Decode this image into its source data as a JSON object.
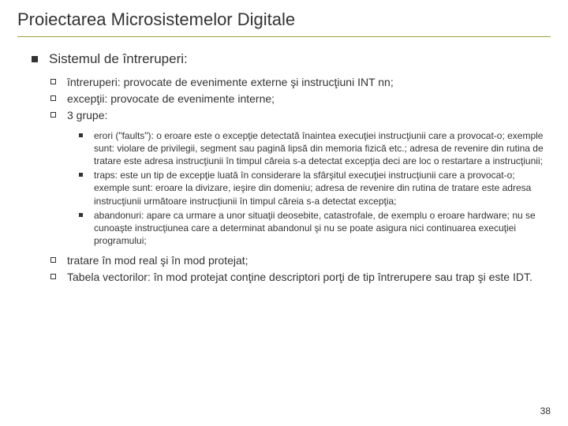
{
  "title": "Proiectarea Microsistemelor Digitale",
  "page_number": "38",
  "colors": {
    "text": "#333333",
    "rule": "#a0a040",
    "background": "#ffffff"
  },
  "fontsizes": {
    "title": 22,
    "level1": 17,
    "level2": 14,
    "level3": 12,
    "page_number": 12
  },
  "level1": [
    {
      "text": "Sistemul de întreruperi:"
    }
  ],
  "level2_a": [
    {
      "text": "întreruperi: provocate de evenimente externe şi instrucţiuni INT nn;"
    },
    {
      "text": "excepţii: provocate de evenimente interne;"
    },
    {
      "text": "3 grupe:"
    }
  ],
  "level3": [
    {
      "text": "erori (\"faults\"): o eroare este o excepţie detectată înaintea execuţiei instrucţiunii care a provocat-o; exemple sunt: violare de privilegii, segment sau pagină lipsă din memoria fizică etc.; adresa de revenire din rutina de tratare este adresa instrucţiunii în timpul căreia s-a detectat excepţia deci are loc o restartare a instrucţiunii;"
    },
    {
      "text": "traps: este un tip de excepţie luată în considerare la sfârşitul execuţiei instrucţiunii care a provocat-o; exemple sunt: eroare la divizare, ieşire din domeniu; adresa de revenire din rutina de tratare este adresa instrucţiunii următoare instrucţiunii în timpul căreia s-a detectat excepţia;"
    },
    {
      "text": "abandonuri: apare ca urmare a unor situaţii deosebite, catastrofale, de exemplu o eroare hardware; nu se cunoaşte instrucţiunea care a determinat abandonul şi nu se poate asigura nici continuarea execuţiei programului;"
    }
  ],
  "level2_b": [
    {
      "text": "tratare în mod real şi în mod protejat;"
    },
    {
      "text": "Tabela vectorilor: în mod protejat conţine descriptori porţi de tip întrerupere sau trap şi este IDT."
    }
  ]
}
